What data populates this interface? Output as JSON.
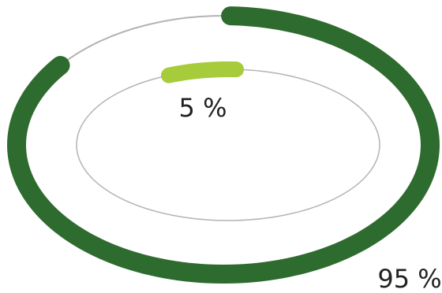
{
  "chart_data": {
    "type": "pie",
    "style": "concentric-ring-gauges",
    "series": [
      {
        "ring": "outer",
        "value": 95,
        "label": "95 %",
        "color": "#2e6b2e",
        "track_color": "#b3b3b3"
      },
      {
        "ring": "inner",
        "value": 5,
        "label": "5 %",
        "color": "#a6cc3b",
        "track_color": "#b3b3b3"
      }
    ]
  }
}
